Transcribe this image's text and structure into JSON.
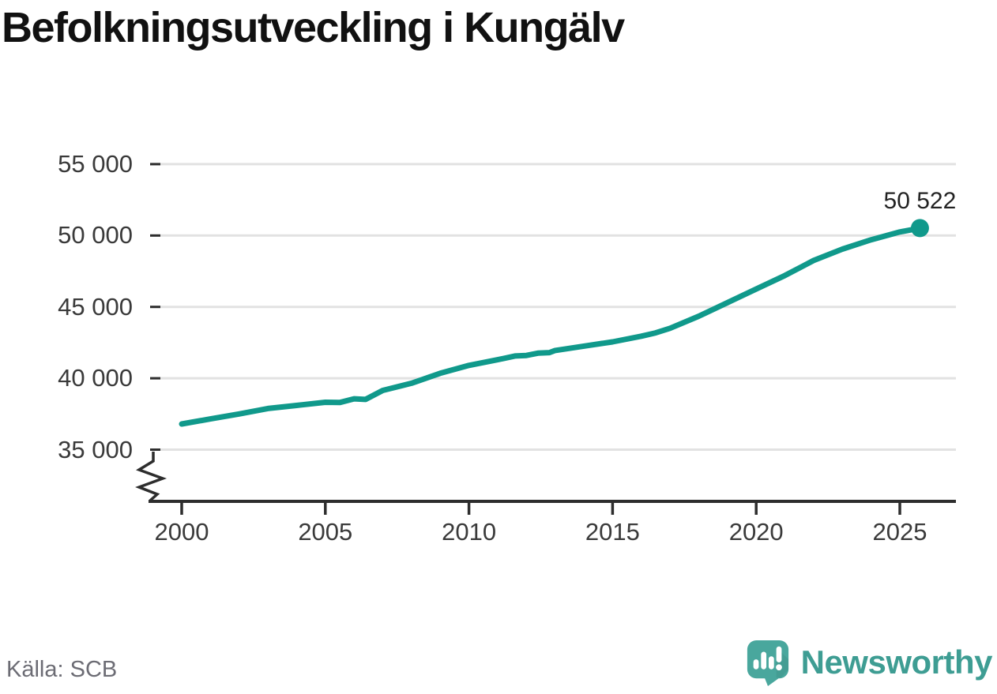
{
  "title": "Befolkningsutveckling i Kungälv",
  "source": "Källa: SCB",
  "branding": {
    "name": "Newsworthy",
    "icon": "newsworthy-logo-icon"
  },
  "colors": {
    "line": "#10998B",
    "dot": "#10998B",
    "grid": "#e2e2e2",
    "axis": "#2d2d2d",
    "tick_text": "#3a3a3a",
    "title_text": "#111111",
    "source_text": "#6c6c74",
    "logo_bubble": "#49a79d",
    "logo_wordmark": "#3e9d93"
  },
  "chart_data": {
    "type": "line",
    "title": "Befolkningsutveckling i Kungälv",
    "x": [
      2000,
      2001,
      2002,
      2003,
      2004,
      2005,
      2005.5,
      2006,
      2006.4,
      2007,
      2008,
      2009,
      2010,
      2011,
      2011.6,
      2012,
      2012.4,
      2012.8,
      2013,
      2014,
      2015,
      2016,
      2016.5,
      2017,
      2018,
      2019,
      2020,
      2021,
      2022,
      2023,
      2024,
      2025,
      2025.7
    ],
    "values": [
      36800,
      37150,
      37500,
      37880,
      38100,
      38320,
      38300,
      38560,
      38520,
      39150,
      39650,
      40350,
      40900,
      41300,
      41560,
      41600,
      41760,
      41800,
      41950,
      42250,
      42550,
      42950,
      43180,
      43500,
      44350,
      45300,
      46250,
      47200,
      48250,
      49050,
      49700,
      50250,
      50522
    ],
    "x_ticks": [
      2000,
      2005,
      2010,
      2015,
      2020,
      2025
    ],
    "x_tick_labels": [
      "2000",
      "2005",
      "2010",
      "2015",
      "2020",
      "2025"
    ],
    "y_ticks": [
      35000,
      40000,
      45000,
      50000,
      55000
    ],
    "y_tick_labels": [
      "35 000",
      "40 000",
      "45 000",
      "50 000",
      "55 000"
    ],
    "ylim": [
      35000,
      55000
    ],
    "xlim": [
      2000,
      2027
    ],
    "y_axis_break": true,
    "grid": "horizontal",
    "legend": "none",
    "last_point": {
      "x": 2025.7,
      "value": 50522,
      "label": "50 522"
    }
  }
}
